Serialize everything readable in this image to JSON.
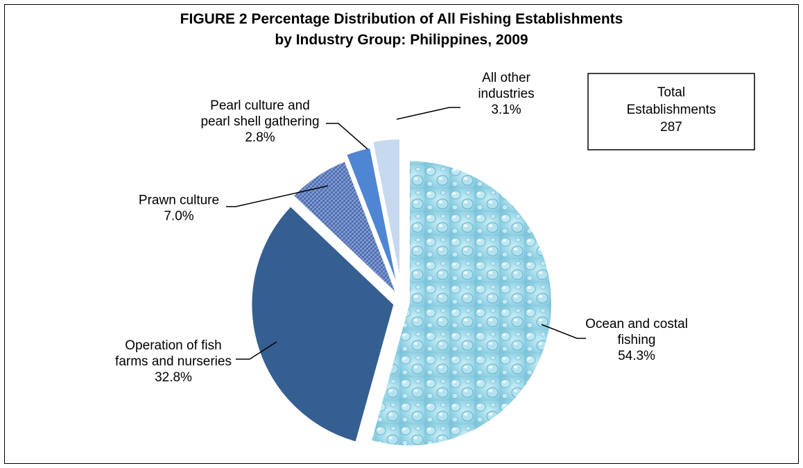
{
  "chart_data": {
    "type": "pie",
    "title": [
      "FIGURE 2  Percentage Distribution of All Fishing Establishments",
      "by Industry Group: Philippines, 2009"
    ],
    "slices": [
      {
        "id": "ocean",
        "label": [
          "Ocean and costal",
          "fishing"
        ],
        "pct_text": "54.3%",
        "value": 54.3,
        "color": "#9ed8e8"
      },
      {
        "id": "fishfarms",
        "label": [
          "Operation of fish",
          "farms and nurseries"
        ],
        "pct_text": "32.8%",
        "value": 32.8,
        "color": "#355f91"
      },
      {
        "id": "prawn",
        "label": [
          "Prawn culture"
        ],
        "pct_text": "7.0%",
        "value": 7.0,
        "color": "#5b7fc0"
      },
      {
        "id": "pearl",
        "label": [
          "Pearl culture and",
          "pearl shell gathering"
        ],
        "pct_text": "2.8%",
        "value": 2.8,
        "color": "#4f86d3"
      },
      {
        "id": "other",
        "label": [
          "All other",
          "industries"
        ],
        "pct_text": "3.1%",
        "value": 3.1,
        "color": "#c7d9ef"
      }
    ],
    "total_box": {
      "lines": [
        "Total",
        "Establishments",
        "287"
      ]
    }
  }
}
